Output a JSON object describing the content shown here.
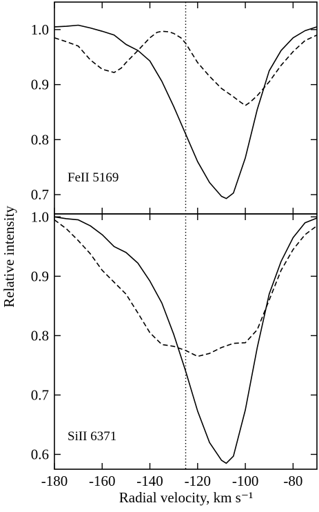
{
  "chart_data": [
    {
      "type": "line",
      "panel_label": "FeII 5169",
      "xlim": [
        -180,
        -70
      ],
      "ylim": [
        0.665,
        1.05
      ],
      "yticks": [
        0.7,
        0.8,
        0.9,
        1.0
      ],
      "ytick_labels": [
        "0.7",
        "0.8",
        "0.9",
        "1.0"
      ],
      "series": [
        {
          "style": "solid",
          "x": [
            -180,
            -175,
            -170,
            -165,
            -160,
            -155,
            -150,
            -145,
            -140,
            -135,
            -130,
            -125,
            -120,
            -115,
            -110,
            -108,
            -105,
            -100,
            -95,
            -90,
            -85,
            -80,
            -75,
            -70
          ],
          "y": [
            1.005,
            1.006,
            1.008,
            1.003,
            0.997,
            0.99,
            0.973,
            0.962,
            0.943,
            0.906,
            0.86,
            0.81,
            0.76,
            0.722,
            0.697,
            0.693,
            0.703,
            0.767,
            0.855,
            0.925,
            0.962,
            0.985,
            0.998,
            1.005
          ]
        },
        {
          "style": "dashed",
          "x": [
            -180,
            -175,
            -170,
            -165,
            -160,
            -155,
            -152,
            -150,
            -145,
            -140,
            -137,
            -135,
            -132,
            -130,
            -127,
            -125,
            -120,
            -115,
            -110,
            -105,
            -102,
            -100,
            -98,
            -95,
            -90,
            -85,
            -80,
            -75,
            -70
          ],
          "y": [
            0.985,
            0.978,
            0.97,
            0.945,
            0.928,
            0.922,
            0.93,
            0.94,
            0.962,
            0.985,
            0.995,
            0.997,
            0.996,
            0.993,
            0.985,
            0.975,
            0.94,
            0.915,
            0.893,
            0.878,
            0.868,
            0.862,
            0.868,
            0.88,
            0.905,
            0.935,
            0.96,
            0.98,
            0.99
          ]
        }
      ]
    },
    {
      "type": "line",
      "panel_label": "SiII 6371",
      "xlim": [
        -180,
        -70
      ],
      "ylim": [
        0.575,
        1.005
      ],
      "yticks": [
        0.6,
        0.7,
        0.8,
        0.9,
        1.0
      ],
      "ytick_labels": [
        "0.6",
        "0.7",
        "0.8",
        "0.9",
        "1.0"
      ],
      "series": [
        {
          "style": "solid",
          "x": [
            -180,
            -175,
            -170,
            -165,
            -160,
            -155,
            -150,
            -145,
            -140,
            -135,
            -130,
            -125,
            -120,
            -115,
            -110,
            -108,
            -105,
            -100,
            -95,
            -90,
            -85,
            -80,
            -75,
            -70
          ],
          "y": [
            1.0,
            0.997,
            0.995,
            0.985,
            0.97,
            0.95,
            0.94,
            0.922,
            0.892,
            0.855,
            0.802,
            0.74,
            0.673,
            0.62,
            0.59,
            0.585,
            0.597,
            0.675,
            0.78,
            0.87,
            0.925,
            0.965,
            0.99,
            0.998
          ]
        },
        {
          "style": "dashed",
          "x": [
            -180,
            -175,
            -170,
            -165,
            -160,
            -155,
            -150,
            -145,
            -140,
            -135,
            -130,
            -125,
            -120,
            -115,
            -110,
            -105,
            -100,
            -95,
            -90,
            -85,
            -80,
            -75,
            -70
          ],
          "y": [
            0.995,
            0.98,
            0.96,
            0.938,
            0.91,
            0.89,
            0.87,
            0.838,
            0.805,
            0.785,
            0.782,
            0.775,
            0.765,
            0.77,
            0.78,
            0.787,
            0.788,
            0.81,
            0.86,
            0.91,
            0.945,
            0.97,
            0.985
          ]
        }
      ]
    }
  ],
  "x_axis": {
    "label": "Radial velocity, km s⁻¹",
    "ticks": [
      -180,
      -160,
      -140,
      -120,
      -100,
      -80
    ],
    "tick_labels": [
      "-180",
      "-160",
      "-140",
      "-120",
      "-100",
      "-80"
    ]
  },
  "y_axis": {
    "label": "Relative intensity"
  },
  "reference_line": {
    "x": -125,
    "style": "dotted"
  },
  "colors": {
    "line": "#000000",
    "background": "#ffffff"
  }
}
